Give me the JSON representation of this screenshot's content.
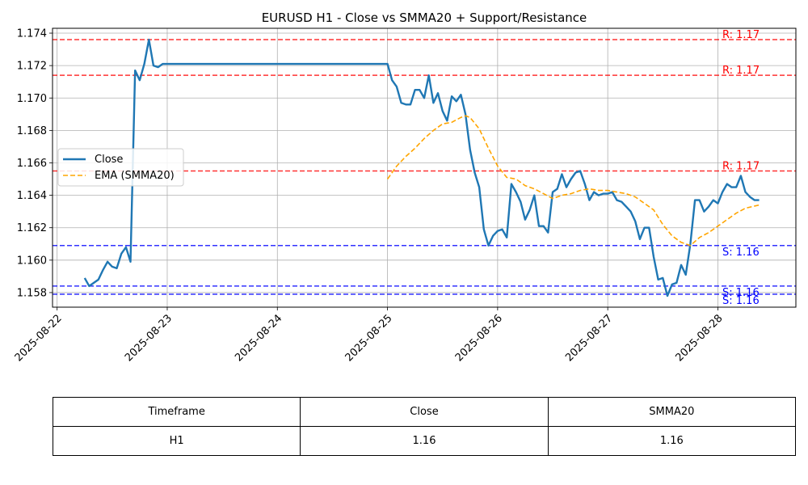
{
  "chart_data": {
    "type": "line",
    "title": "EURUSD H1 - Close vs SMMA20 + Support/Resistance",
    "xlabel": "",
    "ylabel": "",
    "xlim": [
      "2025-08-21 23:00",
      "2025-08-28 17:00"
    ],
    "ylim": [
      1.1571,
      1.1743
    ],
    "x_ticks": [
      "2025-08-22",
      "2025-08-23",
      "2025-08-24",
      "2025-08-25",
      "2025-08-26",
      "2025-08-27",
      "2025-08-28"
    ],
    "y_ticks": [
      "1.158",
      "1.160",
      "1.162",
      "1.164",
      "1.166",
      "1.168",
      "1.170",
      "1.172",
      "1.174"
    ],
    "grid": true,
    "legend": {
      "placement": "center-left",
      "entries": [
        "Close",
        "EMA (SMMA20)"
      ]
    },
    "series": [
      {
        "name": "Close",
        "color": "#1f77b4",
        "style": "solid",
        "points": [
          [
            "2025-08-22 06:00",
            1.1589
          ],
          [
            "2025-08-22 07:00",
            1.1584
          ],
          [
            "2025-08-22 09:00",
            1.1588
          ],
          [
            "2025-08-22 10:00",
            1.1594
          ],
          [
            "2025-08-22 11:00",
            1.1599
          ],
          [
            "2025-08-22 12:00",
            1.1596
          ],
          [
            "2025-08-22 13:00",
            1.1595
          ],
          [
            "2025-08-22 14:00",
            1.1604
          ],
          [
            "2025-08-22 15:00",
            1.1608
          ],
          [
            "2025-08-22 16:00",
            1.1599
          ],
          [
            "2025-08-22 17:00",
            1.1717
          ],
          [
            "2025-08-22 18:00",
            1.1711
          ],
          [
            "2025-08-22 19:00",
            1.1721
          ],
          [
            "2025-08-22 20:00",
            1.1736
          ],
          [
            "2025-08-22 21:00",
            1.172
          ],
          [
            "2025-08-22 22:00",
            1.1719
          ],
          [
            "2025-08-22 23:00",
            1.1721
          ],
          [
            "2025-08-25 00:00",
            1.1721
          ],
          [
            "2025-08-25 01:00",
            1.1711
          ],
          [
            "2025-08-25 02:00",
            1.1707
          ],
          [
            "2025-08-25 03:00",
            1.1697
          ],
          [
            "2025-08-25 04:00",
            1.1696
          ],
          [
            "2025-08-25 05:00",
            1.1696
          ],
          [
            "2025-08-25 06:00",
            1.1705
          ],
          [
            "2025-08-25 07:00",
            1.1705
          ],
          [
            "2025-08-25 08:00",
            1.17
          ],
          [
            "2025-08-25 09:00",
            1.1714
          ],
          [
            "2025-08-25 10:00",
            1.1697
          ],
          [
            "2025-08-25 11:00",
            1.1703
          ],
          [
            "2025-08-25 12:00",
            1.1692
          ],
          [
            "2025-08-25 13:00",
            1.1686
          ],
          [
            "2025-08-25 14:00",
            1.1701
          ],
          [
            "2025-08-25 15:00",
            1.1698
          ],
          [
            "2025-08-25 16:00",
            1.1702
          ],
          [
            "2025-08-25 17:00",
            1.169
          ],
          [
            "2025-08-25 18:00",
            1.1668
          ],
          [
            "2025-08-25 19:00",
            1.1654
          ],
          [
            "2025-08-25 20:00",
            1.1645
          ],
          [
            "2025-08-25 21:00",
            1.1619
          ],
          [
            "2025-08-25 22:00",
            1.1609
          ],
          [
            "2025-08-25 23:00",
            1.1615
          ],
          [
            "2025-08-26 00:00",
            1.1618
          ],
          [
            "2025-08-26 01:00",
            1.1619
          ],
          [
            "2025-08-26 02:00",
            1.1614
          ],
          [
            "2025-08-26 03:00",
            1.1647
          ],
          [
            "2025-08-26 04:00",
            1.1642
          ],
          [
            "2025-08-26 05:00",
            1.1636
          ],
          [
            "2025-08-26 06:00",
            1.1625
          ],
          [
            "2025-08-26 07:00",
            1.1631
          ],
          [
            "2025-08-26 08:00",
            1.164
          ],
          [
            "2025-08-26 09:00",
            1.1621
          ],
          [
            "2025-08-26 10:00",
            1.1621
          ],
          [
            "2025-08-26 11:00",
            1.1617
          ],
          [
            "2025-08-26 12:00",
            1.1642
          ],
          [
            "2025-08-26 13:00",
            1.1644
          ],
          [
            "2025-08-26 14:00",
            1.1653
          ],
          [
            "2025-08-26 15:00",
            1.1645
          ],
          [
            "2025-08-26 16:00",
            1.165
          ],
          [
            "2025-08-26 17:00",
            1.1654
          ],
          [
            "2025-08-26 18:00",
            1.1655
          ],
          [
            "2025-08-26 19:00",
            1.1647
          ],
          [
            "2025-08-26 20:00",
            1.1637
          ],
          [
            "2025-08-26 21:00",
            1.1642
          ],
          [
            "2025-08-26 22:00",
            1.164
          ],
          [
            "2025-08-26 23:00",
            1.1641
          ],
          [
            "2025-08-27 00:00",
            1.1641
          ],
          [
            "2025-08-27 01:00",
            1.1642
          ],
          [
            "2025-08-27 02:00",
            1.1637
          ],
          [
            "2025-08-27 03:00",
            1.1636
          ],
          [
            "2025-08-27 04:00",
            1.1633
          ],
          [
            "2025-08-27 05:00",
            1.163
          ],
          [
            "2025-08-27 06:00",
            1.1624
          ],
          [
            "2025-08-27 07:00",
            1.1613
          ],
          [
            "2025-08-27 08:00",
            1.162
          ],
          [
            "2025-08-27 09:00",
            1.162
          ],
          [
            "2025-08-27 10:00",
            1.1602
          ],
          [
            "2025-08-27 11:00",
            1.1588
          ],
          [
            "2025-08-27 12:00",
            1.1589
          ],
          [
            "2025-08-27 13:00",
            1.1578
          ],
          [
            "2025-08-27 14:00",
            1.1585
          ],
          [
            "2025-08-27 15:00",
            1.1586
          ],
          [
            "2025-08-27 16:00",
            1.1597
          ],
          [
            "2025-08-27 17:00",
            1.1591
          ],
          [
            "2025-08-27 18:00",
            1.161
          ],
          [
            "2025-08-27 19:00",
            1.1637
          ],
          [
            "2025-08-27 20:00",
            1.1637
          ],
          [
            "2025-08-27 21:00",
            1.163
          ],
          [
            "2025-08-27 22:00",
            1.1633
          ],
          [
            "2025-08-27 23:00",
            1.1637
          ],
          [
            "2025-08-28 00:00",
            1.1635
          ],
          [
            "2025-08-28 01:00",
            1.1642
          ],
          [
            "2025-08-28 02:00",
            1.1647
          ],
          [
            "2025-08-28 03:00",
            1.1645
          ],
          [
            "2025-08-28 04:00",
            1.1645
          ],
          [
            "2025-08-28 05:00",
            1.1652
          ],
          [
            "2025-08-28 06:00",
            1.1642
          ],
          [
            "2025-08-28 07:00",
            1.1639
          ],
          [
            "2025-08-28 08:00",
            1.1637
          ],
          [
            "2025-08-28 09:00",
            1.1637
          ]
        ]
      },
      {
        "name": "EMA (SMMA20)",
        "color": "#ffa500",
        "style": "dashed",
        "points": [
          [
            "2025-08-25 00:00",
            1.165
          ],
          [
            "2025-08-25 02:00",
            1.1658
          ],
          [
            "2025-08-25 04:00",
            1.1664
          ],
          [
            "2025-08-25 06:00",
            1.1669
          ],
          [
            "2025-08-25 08:00",
            1.1675
          ],
          [
            "2025-08-25 10:00",
            1.168
          ],
          [
            "2025-08-25 12:00",
            1.1684
          ],
          [
            "2025-08-25 14:00",
            1.1685
          ],
          [
            "2025-08-25 16:00",
            1.1688
          ],
          [
            "2025-08-25 17:00",
            1.1689
          ],
          [
            "2025-08-25 18:00",
            1.1688
          ],
          [
            "2025-08-25 20:00",
            1.1681
          ],
          [
            "2025-08-25 22:00",
            1.1669
          ],
          [
            "2025-08-26 00:00",
            1.1658
          ],
          [
            "2025-08-26 02:00",
            1.1651
          ],
          [
            "2025-08-26 04:00",
            1.165
          ],
          [
            "2025-08-26 06:00",
            1.1646
          ],
          [
            "2025-08-26 08:00",
            1.1644
          ],
          [
            "2025-08-26 10:00",
            1.1641
          ],
          [
            "2025-08-26 12:00",
            1.1638
          ],
          [
            "2025-08-26 14:00",
            1.164
          ],
          [
            "2025-08-26 16:00",
            1.1641
          ],
          [
            "2025-08-26 18:00",
            1.1643
          ],
          [
            "2025-08-26 20:00",
            1.1644
          ],
          [
            "2025-08-26 22:00",
            1.1643
          ],
          [
            "2025-08-27 00:00",
            1.1643
          ],
          [
            "2025-08-27 02:00",
            1.1642
          ],
          [
            "2025-08-27 04:00",
            1.1641
          ],
          [
            "2025-08-27 06:00",
            1.1639
          ],
          [
            "2025-08-27 08:00",
            1.1635
          ],
          [
            "2025-08-27 10:00",
            1.1631
          ],
          [
            "2025-08-27 12:00",
            1.1622
          ],
          [
            "2025-08-27 14:00",
            1.1615
          ],
          [
            "2025-08-27 16:00",
            1.1611
          ],
          [
            "2025-08-27 18:00",
            1.1609
          ],
          [
            "2025-08-27 20:00",
            1.1614
          ],
          [
            "2025-08-27 22:00",
            1.1617
          ],
          [
            "2025-08-28 00:00",
            1.1621
          ],
          [
            "2025-08-28 02:00",
            1.1625
          ],
          [
            "2025-08-28 04:00",
            1.1629
          ],
          [
            "2025-08-28 06:00",
            1.1632
          ],
          [
            "2025-08-28 09:00",
            1.1634
          ]
        ]
      }
    ],
    "levels": [
      {
        "kind": "resistance",
        "value": 1.1736,
        "label": "R: 1.17",
        "color": "#ff0000"
      },
      {
        "kind": "resistance",
        "value": 1.1714,
        "label": "R: 1.17",
        "color": "#ff0000"
      },
      {
        "kind": "resistance",
        "value": 1.1655,
        "label": "R: 1.17",
        "color": "#ff0000"
      },
      {
        "kind": "support",
        "value": 1.1609,
        "label": "S: 1.16",
        "color": "#0000ff"
      },
      {
        "kind": "support",
        "value": 1.1584,
        "label": "S: 1.16",
        "color": "#0000ff"
      },
      {
        "kind": "support",
        "value": 1.1579,
        "label": "S: 1.16",
        "color": "#0000ff"
      }
    ],
    "table": {
      "headers": [
        "Timeframe",
        "Close",
        "SMMA20"
      ],
      "rows": [
        [
          "H1",
          "1.16",
          "1.16"
        ]
      ]
    }
  }
}
